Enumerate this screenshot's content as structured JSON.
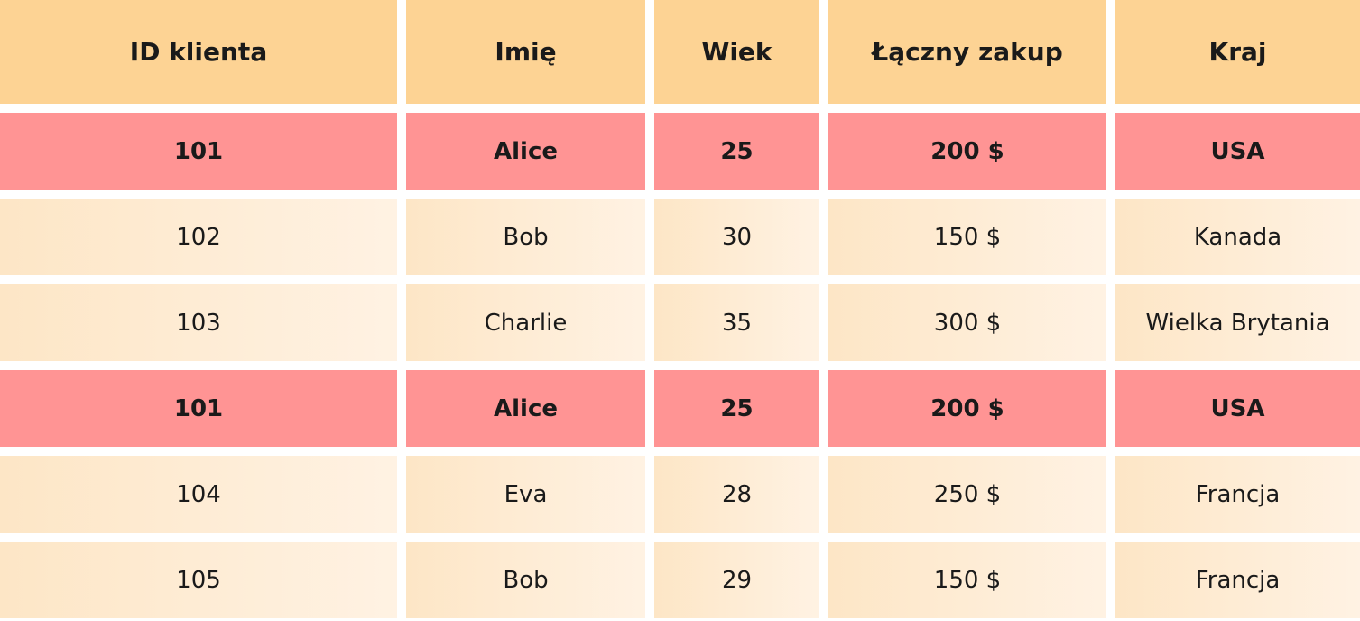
{
  "table": {
    "headers": [
      "ID klienta",
      "Imię",
      "Wiek",
      "Łączny zakup",
      "Kraj"
    ],
    "rows": [
      [
        "101",
        "Alice",
        "25",
        "200 $",
        "USA"
      ],
      [
        "102",
        "Bob",
        "30",
        "150 $",
        "Kanada"
      ],
      [
        "103",
        "Charlie",
        "35",
        "300 $",
        "Wielka Brytania"
      ],
      [
        "101",
        "Alice",
        "25",
        "200 $",
        "USA"
      ],
      [
        "104",
        "Eva",
        "28",
        "250 $",
        "Francja"
      ],
      [
        "105",
        "Bob",
        "29",
        "150 $",
        "Francja"
      ]
    ],
    "highlighted_rows": [
      0,
      3
    ],
    "header_color": "#fdd394",
    "highlight_color": "#ff9494"
  }
}
